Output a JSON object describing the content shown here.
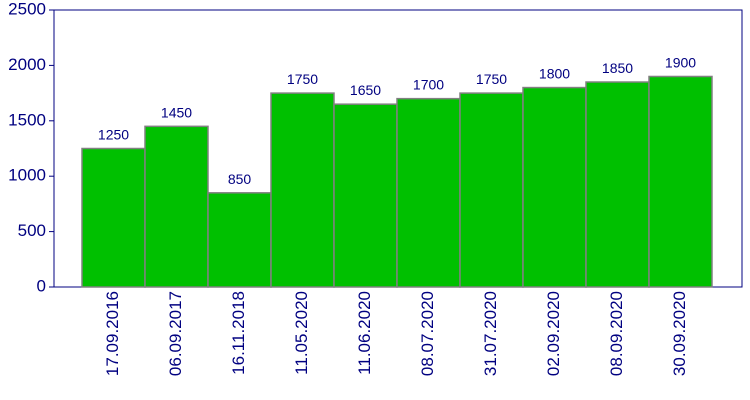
{
  "chart_data": {
    "type": "bar",
    "categories": [
      "17.09.2016",
      "06.09.2017",
      "16.11.2018",
      "11.05.2020",
      "11.06.2020",
      "08.07.2020",
      "31.07.2020",
      "02.09.2020",
      "08.09.2020",
      "30.09.2020"
    ],
    "values": [
      1250,
      1450,
      850,
      1750,
      1650,
      1700,
      1750,
      1800,
      1850,
      1900
    ],
    "color": "#00c000",
    "ylim": [
      0,
      2500
    ],
    "yticks": [
      0,
      500,
      1000,
      1500,
      2000,
      2500
    ]
  }
}
